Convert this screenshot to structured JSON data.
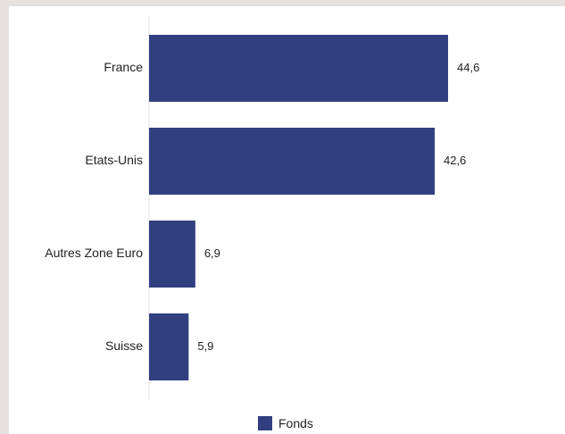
{
  "chart_data": {
    "type": "bar",
    "orientation": "horizontal",
    "categories": [
      "France",
      "Etats-Unis",
      "Autres Zone Euro",
      "Suisse"
    ],
    "series": [
      {
        "name": "Fonds",
        "values": [
          44.6,
          42.6,
          6.9,
          5.9
        ],
        "labels": [
          "44,6",
          "42,6",
          "6,9",
          "5,9"
        ],
        "color": "#313f80"
      }
    ],
    "xlim": [
      0,
      60
    ],
    "grid": false,
    "legend_position": "bottom"
  }
}
